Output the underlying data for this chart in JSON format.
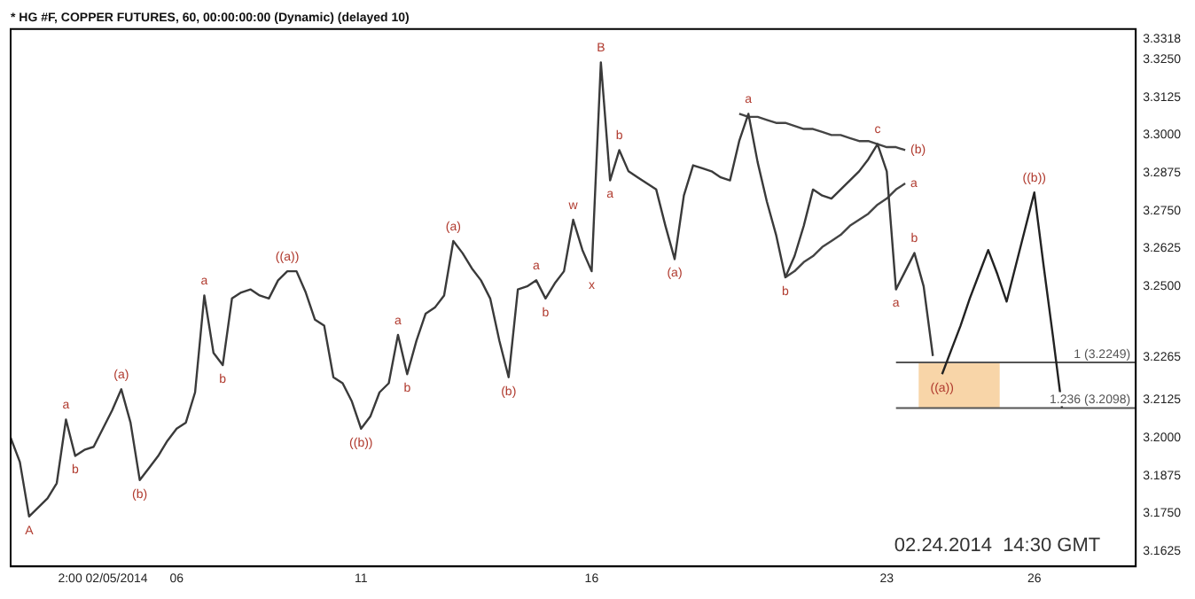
{
  "chart_data": {
    "type": "line",
    "title": "* HG #F, COPPER FUTURES, 60, 00:00:00:00 (Dynamic) (delayed 10)",
    "categories": [
      null,
      null,
      null,
      null,
      null,
      null,
      null,
      null,
      null,
      null,
      "2:00 02/05/2014",
      null,
      null,
      null,
      null,
      null,
      null,
      null,
      "06",
      null,
      null,
      null,
      null,
      null,
      null,
      null,
      null,
      null,
      null,
      null,
      null,
      null,
      null,
      null,
      null,
      null,
      null,
      null,
      "11",
      null,
      null,
      null,
      null,
      null,
      null,
      null,
      null,
      null,
      null,
      null,
      null,
      null,
      null,
      null,
      null,
      null,
      null,
      null,
      null,
      null,
      null,
      null,
      null,
      "16",
      null,
      null,
      null,
      null,
      null,
      null,
      null,
      null,
      null,
      null,
      null,
      null,
      null,
      null,
      null,
      null,
      null,
      null,
      null,
      null,
      null,
      null,
      null,
      null,
      null,
      null,
      null,
      null,
      null,
      null,
      null,
      "23",
      null,
      null,
      null,
      null,
      null,
      null,
      null,
      null,
      null,
      null,
      null,
      null,
      null,
      null,
      null,
      "26",
      null,
      null,
      null,
      null,
      null,
      null,
      null,
      null,
      null,
      null,
      null
    ],
    "series": [
      {
        "color": "#3a3a3a",
        "values": [
          3.2,
          3.192,
          3.174,
          3.177,
          3.18,
          3.185,
          3.206,
          3.194,
          3.196,
          3.197,
          3.203,
          3.209,
          3.216,
          3.205,
          3.186,
          3.19,
          3.194,
          3.199,
          3.203,
          3.205,
          3.215,
          3.247,
          3.228,
          3.224,
          3.246,
          3.248,
          3.249,
          3.247,
          3.246,
          3.252,
          3.255,
          3.255,
          3.248,
          3.239,
          3.237,
          3.22,
          3.218,
          3.212,
          3.203,
          3.207,
          3.215,
          3.218,
          3.234,
          3.221,
          3.232,
          3.241,
          3.243,
          3.247,
          3.265,
          3.261,
          3.256,
          3.252,
          3.246,
          3.232,
          3.22,
          3.249,
          3.25,
          3.252,
          3.246,
          3.251,
          3.255,
          3.272,
          3.262,
          3.255,
          3.324,
          3.285,
          3.295,
          3.288,
          3.286,
          3.284,
          3.282,
          3.27,
          3.259,
          3.28,
          3.29,
          3.289,
          3.288,
          3.286,
          3.285,
          3.298,
          3.307,
          3.291,
          3.278,
          3.267,
          3.253,
          3.26,
          3.27,
          3.282,
          3.28,
          3.279,
          3.282,
          3.285,
          3.288,
          3.292,
          3.297,
          3.288,
          3.249,
          3.255,
          3.261,
          3.25,
          3.227,
          null,
          null,
          null,
          null,
          null,
          null,
          null,
          null,
          null,
          null,
          null,
          null,
          null,
          null,
          null,
          null,
          null,
          null,
          null,
          null,
          null,
          null
        ],
        "value_labels": [
          null,
          null,
          "A",
          null,
          null,
          null,
          "a",
          "b",
          null,
          null,
          null,
          null,
          "(a)",
          null,
          "(b)",
          null,
          null,
          null,
          null,
          null,
          null,
          "a",
          null,
          "b",
          null,
          null,
          null,
          null,
          null,
          null,
          "((a))",
          null,
          null,
          null,
          null,
          null,
          null,
          null,
          "((b))",
          null,
          null,
          null,
          "a",
          "b",
          null,
          null,
          null,
          null,
          "(a)",
          null,
          null,
          null,
          null,
          null,
          "(b)",
          null,
          null,
          "a",
          "b",
          null,
          null,
          "w",
          null,
          "x",
          "B",
          "a",
          "b",
          null,
          null,
          null,
          null,
          null,
          "(a)",
          null,
          null,
          null,
          null,
          null,
          null,
          null,
          "a",
          null,
          null,
          null,
          "b",
          null,
          null,
          null,
          null,
          null,
          null,
          null,
          null,
          null,
          "c",
          null,
          "a",
          null,
          "b",
          null,
          null,
          null,
          null,
          null,
          null,
          null,
          null,
          null,
          null,
          null,
          null,
          null,
          null,
          null,
          null,
          null,
          null,
          null,
          null,
          null,
          null,
          null,
          null
        ]
      },
      {
        "color": "#222222",
        "values": [
          null,
          null,
          null,
          null,
          null,
          null,
          null,
          null,
          null,
          null,
          null,
          null,
          null,
          null,
          null,
          null,
          null,
          null,
          null,
          null,
          null,
          null,
          null,
          null,
          null,
          null,
          null,
          null,
          null,
          null,
          null,
          null,
          null,
          null,
          null,
          null,
          null,
          null,
          null,
          null,
          null,
          null,
          null,
          null,
          null,
          null,
          null,
          null,
          null,
          null,
          null,
          null,
          null,
          null,
          null,
          null,
          null,
          null,
          null,
          null,
          null,
          null,
          null,
          null,
          null,
          null,
          null,
          null,
          null,
          null,
          null,
          null,
          null,
          null,
          null,
          null,
          null,
          null,
          null,
          null,
          null,
          null,
          null,
          null,
          null,
          null,
          null,
          null,
          null,
          null,
          null,
          null,
          null,
          null,
          null,
          null,
          null,
          null,
          null,
          null,
          null,
          3.221,
          3.229,
          3.237,
          3.246,
          3.254,
          3.262,
          3.254,
          3.245,
          3.257,
          3.269,
          3.281,
          3.257,
          3.234,
          3.21,
          null,
          null,
          null,
          null,
          null,
          null,
          null,
          null
        ],
        "value_labels": [
          null,
          null,
          null,
          null,
          null,
          null,
          null,
          null,
          null,
          null,
          null,
          null,
          null,
          null,
          null,
          null,
          null,
          null,
          null,
          null,
          null,
          null,
          null,
          null,
          null,
          null,
          null,
          null,
          null,
          null,
          null,
          null,
          null,
          null,
          null,
          null,
          null,
          null,
          null,
          null,
          null,
          null,
          null,
          null,
          null,
          null,
          null,
          null,
          null,
          null,
          null,
          null,
          null,
          null,
          null,
          null,
          null,
          null,
          null,
          null,
          null,
          null,
          null,
          null,
          null,
          null,
          null,
          null,
          null,
          null,
          null,
          null,
          null,
          null,
          null,
          null,
          null,
          null,
          null,
          null,
          null,
          null,
          null,
          null,
          null,
          null,
          null,
          null,
          null,
          null,
          null,
          null,
          null,
          null,
          null,
          null,
          null,
          null,
          null,
          null,
          null,
          "((a))",
          null,
          null,
          null,
          null,
          null,
          null,
          null,
          null,
          null,
          "((b))",
          null,
          null,
          null,
          null,
          null,
          null,
          null,
          null,
          null,
          null,
          null
        ]
      },
      {
        "color": "#444444",
        "values": [
          null,
          null,
          null,
          null,
          null,
          null,
          null,
          null,
          null,
          null,
          null,
          null,
          null,
          null,
          null,
          null,
          null,
          null,
          null,
          null,
          null,
          null,
          null,
          null,
          null,
          null,
          null,
          null,
          null,
          null,
          null,
          null,
          null,
          null,
          null,
          null,
          null,
          null,
          null,
          null,
          null,
          null,
          null,
          null,
          null,
          null,
          null,
          null,
          null,
          null,
          null,
          null,
          null,
          null,
          null,
          null,
          null,
          null,
          null,
          null,
          null,
          null,
          null,
          null,
          null,
          null,
          null,
          null,
          null,
          null,
          null,
          null,
          null,
          null,
          null,
          null,
          null,
          null,
          null,
          3.307,
          3.306,
          3.306,
          3.305,
          3.304,
          3.304,
          3.303,
          3.302,
          3.302,
          3.301,
          3.3,
          3.3,
          3.299,
          3.298,
          3.298,
          3.297,
          3.296,
          3.296,
          3.295,
          null,
          null,
          null,
          null,
          null,
          null,
          null,
          null,
          null,
          null,
          null,
          null,
          null,
          null,
          null,
          null,
          null,
          null,
          null,
          null,
          null,
          null,
          null,
          null,
          null
        ],
        "value_labels": [
          null,
          null,
          null,
          null,
          null,
          null,
          null,
          null,
          null,
          null,
          null,
          null,
          null,
          null,
          null,
          null,
          null,
          null,
          null,
          null,
          null,
          null,
          null,
          null,
          null,
          null,
          null,
          null,
          null,
          null,
          null,
          null,
          null,
          null,
          null,
          null,
          null,
          null,
          null,
          null,
          null,
          null,
          null,
          null,
          null,
          null,
          null,
          null,
          null,
          null,
          null,
          null,
          null,
          null,
          null,
          null,
          null,
          null,
          null,
          null,
          null,
          null,
          null,
          null,
          null,
          null,
          null,
          null,
          null,
          null,
          null,
          null,
          null,
          null,
          null,
          null,
          null,
          null,
          null,
          null,
          null,
          null,
          null,
          null,
          null,
          null,
          null,
          null,
          null,
          null,
          null,
          null,
          null,
          null,
          null,
          null,
          null,
          "(b)",
          null,
          null,
          null,
          null,
          null,
          null,
          null,
          null,
          null,
          null,
          null,
          null,
          null,
          null,
          null,
          null,
          null,
          null,
          null,
          null,
          null,
          null,
          null,
          null,
          null
        ]
      },
      {
        "color": "#444444",
        "values": [
          null,
          null,
          null,
          null,
          null,
          null,
          null,
          null,
          null,
          null,
          null,
          null,
          null,
          null,
          null,
          null,
          null,
          null,
          null,
          null,
          null,
          null,
          null,
          null,
          null,
          null,
          null,
          null,
          null,
          null,
          null,
          null,
          null,
          null,
          null,
          null,
          null,
          null,
          null,
          null,
          null,
          null,
          null,
          null,
          null,
          null,
          null,
          null,
          null,
          null,
          null,
          null,
          null,
          null,
          null,
          null,
          null,
          null,
          null,
          null,
          null,
          null,
          null,
          null,
          null,
          null,
          null,
          null,
          null,
          null,
          null,
          null,
          null,
          null,
          null,
          null,
          null,
          null,
          null,
          null,
          null,
          null,
          null,
          null,
          3.253,
          3.255,
          3.258,
          3.26,
          3.263,
          3.265,
          3.267,
          3.27,
          3.272,
          3.274,
          3.277,
          3.279,
          3.282,
          3.284,
          null,
          null,
          null,
          null,
          null,
          null,
          null,
          null,
          null,
          null,
          null,
          null,
          null,
          null,
          null,
          null,
          null,
          null,
          null,
          null,
          null,
          null,
          null,
          null,
          null
        ],
        "value_labels": [
          null,
          null,
          null,
          null,
          null,
          null,
          null,
          null,
          null,
          null,
          null,
          null,
          null,
          null,
          null,
          null,
          null,
          null,
          null,
          null,
          null,
          null,
          null,
          null,
          null,
          null,
          null,
          null,
          null,
          null,
          null,
          null,
          null,
          null,
          null,
          null,
          null,
          null,
          null,
          null,
          null,
          null,
          null,
          null,
          null,
          null,
          null,
          null,
          null,
          null,
          null,
          null,
          null,
          null,
          null,
          null,
          null,
          null,
          null,
          null,
          null,
          null,
          null,
          null,
          null,
          null,
          null,
          null,
          null,
          null,
          null,
          null,
          null,
          null,
          null,
          null,
          null,
          null,
          null,
          null,
          null,
          null,
          null,
          null,
          null,
          null,
          null,
          null,
          null,
          null,
          null,
          null,
          null,
          null,
          null,
          null,
          null,
          "a",
          null,
          null,
          null,
          null,
          null,
          null,
          null,
          null,
          null,
          null,
          null,
          null,
          null,
          null,
          null,
          null,
          null,
          null,
          null,
          null,
          null,
          null,
          null,
          null,
          null
        ]
      }
    ],
    "ylim": [
      3.1575,
      3.335
    ],
    "yticks": [
      {
        "value": 3.1625,
        "label": "3.1625"
      },
      {
        "value": 3.175,
        "label": "3.1750"
      },
      {
        "value": 3.1875,
        "label": "3.1875"
      },
      {
        "value": 3.2,
        "label": "3.2000"
      },
      {
        "value": 3.2125,
        "label": "3.2125"
      },
      {
        "value": 3.2265,
        "label": "3.2265"
      },
      {
        "value": 3.25,
        "label": "3.2500"
      },
      {
        "value": 3.2625,
        "label": "3.2625"
      },
      {
        "value": 3.275,
        "label": "3.2750"
      },
      {
        "value": 3.2875,
        "label": "3.2875"
      },
      {
        "value": 3.3,
        "label": "3.3000"
      },
      {
        "value": 3.3125,
        "label": "3.3125"
      },
      {
        "value": 3.325,
        "label": "3.3250"
      },
      {
        "value": 3.3318,
        "label": "3.3318"
      }
    ],
    "ref_lines": [
      {
        "axis": "y",
        "value": 3.2249,
        "label": "1 (3.2249)",
        "color": "#555555"
      },
      {
        "axis": "y",
        "value": 3.2098,
        "label": "1.236 (3.2098)",
        "color": "#555555"
      }
    ],
    "bands": [
      {
        "axis": "y",
        "from": 3.2098,
        "to": 3.2249,
        "color": "#f8d5a8"
      }
    ],
    "annotations": [
      "02.24.2014  14:30 GMT"
    ],
    "grid": false,
    "legend": false,
    "marker": "none",
    "line_style": "solid"
  }
}
